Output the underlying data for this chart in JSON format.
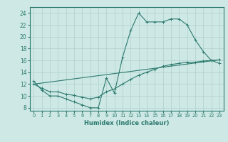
{
  "line1_x": [
    0,
    1,
    2,
    3,
    4,
    5,
    6,
    7,
    8,
    9,
    10,
    11,
    12,
    13,
    14,
    15,
    16,
    17,
    18,
    19,
    20,
    21,
    22,
    23
  ],
  "line1_y": [
    12.5,
    11,
    10,
    10,
    9.5,
    9,
    8.5,
    8,
    8,
    13,
    10.5,
    16.5,
    21,
    24,
    22.5,
    22.5,
    22.5,
    23,
    23,
    22,
    19.5,
    17.5,
    16,
    15.5
  ],
  "line2_x": [
    0,
    1,
    2,
    3,
    4,
    5,
    6,
    7,
    8,
    9,
    10,
    11,
    12,
    13,
    14,
    15,
    16,
    17,
    18,
    19,
    20,
    21,
    22,
    23
  ],
  "line2_y": [
    12.0,
    11.3,
    10.7,
    10.7,
    10.3,
    10.1,
    9.8,
    9.5,
    9.8,
    10.7,
    11.2,
    12.0,
    12.8,
    13.5,
    14.0,
    14.5,
    15.0,
    15.3,
    15.5,
    15.7,
    15.7,
    15.9,
    16.0,
    16.1
  ],
  "line3_x": [
    0,
    23
  ],
  "line3_y": [
    12.0,
    16.1
  ],
  "color": "#2d7a6e",
  "bg_color": "#cde8e5",
  "grid_color": "#aed0cc",
  "xlabel": "Humidex (Indice chaleur)",
  "xlim": [
    -0.5,
    23.5
  ],
  "ylim": [
    7.5,
    25.0
  ],
  "yticks": [
    8,
    10,
    12,
    14,
    16,
    18,
    20,
    22,
    24
  ],
  "xticks": [
    0,
    1,
    2,
    3,
    4,
    5,
    6,
    7,
    8,
    9,
    10,
    11,
    12,
    13,
    14,
    15,
    16,
    17,
    18,
    19,
    20,
    21,
    22,
    23
  ]
}
